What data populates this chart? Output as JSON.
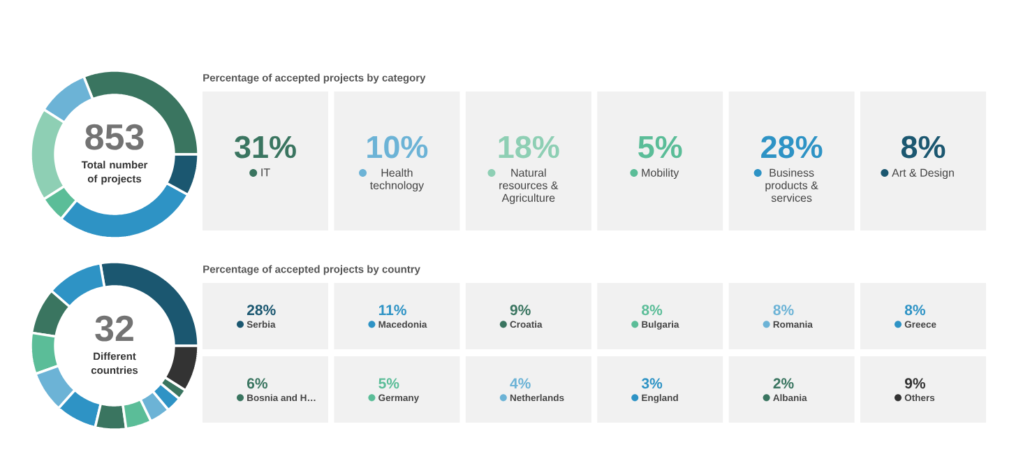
{
  "chart_data": [
    {
      "type": "donut",
      "title": "Percentage of accepted projects by category",
      "categories": [
        "IT",
        "Health technology",
        "Natural resources & Agriculture",
        "Mobility",
        "Business products & services",
        "Art & Design"
      ],
      "values": [
        31,
        10,
        18,
        5,
        28,
        8
      ],
      "value_labels": [
        "31%",
        "10%",
        "18%",
        "5%",
        "28%",
        "8%"
      ],
      "colors": [
        "#3a7560",
        "#6cb3d6",
        "#8ecfb4",
        "#5bbd98",
        "#2e93c5",
        "#1b5770"
      ],
      "legend": "right",
      "annotations": [
        "853",
        "Total number of projects"
      ]
    },
    {
      "type": "donut",
      "title": "Percentage of accepted projects by country",
      "categories": [
        "Serbia",
        "Macedonia",
        "Croatia",
        "Bulgaria",
        "Romania",
        "Greece",
        "Bosnia and H…",
        "Germany",
        "Netherlands",
        "England",
        "Albania",
        "Others"
      ],
      "values": [
        28,
        11,
        9,
        8,
        8,
        8,
        6,
        5,
        4,
        3,
        2,
        9
      ],
      "value_labels": [
        "28%",
        "11%",
        "9%",
        "8%",
        "8%",
        "8%",
        "6%",
        "5%",
        "4%",
        "3%",
        "2%",
        "9%"
      ],
      "colors": [
        "#1b5770",
        "#2e93c5",
        "#3a7560",
        "#5bbd98",
        "#6cb3d6",
        "#2e93c5",
        "#3a7560",
        "#5bbd98",
        "#6cb3d6",
        "#2e93c5",
        "#3a7560",
        "#333333"
      ],
      "legend": "right",
      "annotations": [
        "32",
        "Different countries"
      ]
    }
  ]
}
